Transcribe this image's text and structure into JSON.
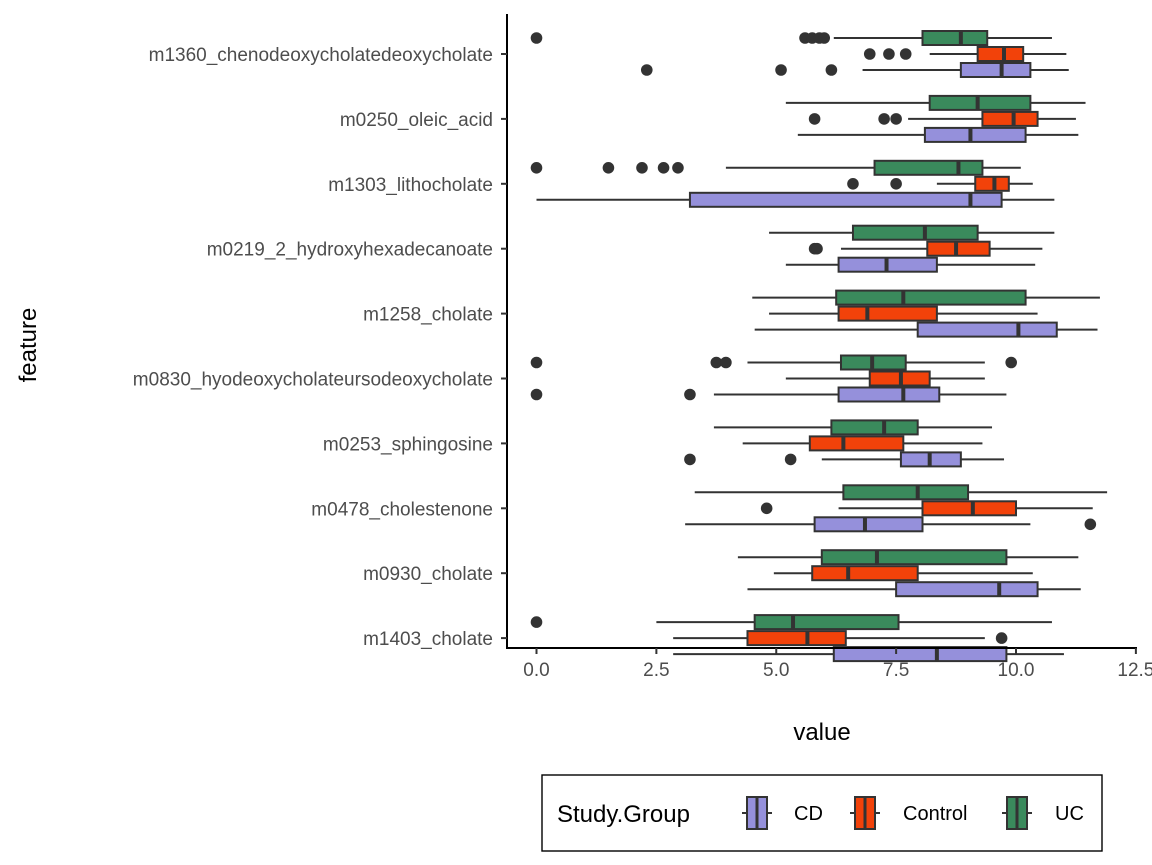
{
  "chart_data": {
    "type": "boxplot",
    "orientation": "horizontal",
    "xlabel": "value",
    "ylabel": "feature",
    "xlim": [
      -0.6,
      12.5
    ],
    "x_ticks": [
      0.0,
      2.5,
      5.0,
      7.5,
      10.0,
      12.5
    ],
    "x_tick_labels": [
      "0.0",
      "2.5",
      "5.0",
      "7.5",
      "10.0",
      "12.5"
    ],
    "grid": false,
    "legend": {
      "title": "Study.Group",
      "placement": "bottom",
      "entries": [
        "CD",
        "Control",
        "UC"
      ]
    },
    "colors": {
      "CD": "#9590db",
      "Control": "#f2420a",
      "UC": "#3a8a5c"
    },
    "categories": [
      "m1360_chenodeoxycholatedeoxycholate",
      "m0250_oleic_acid",
      "m1303_lithocholate",
      "m0219_2_hydroxyhexadecanoate",
      "m1258_cholate",
      "m0830_hyodeoxycholateursodeoxycholate",
      "m0253_sphingosine",
      "m0478_cholestenone",
      "m0930_cholate",
      "m1403_cholate"
    ],
    "series": [
      {
        "name": "CD",
        "boxes": [
          {
            "whislo": 6.8,
            "q1": 8.85,
            "med": 9.7,
            "q3": 10.3,
            "whishi": 11.1,
            "outliers": [
              2.3,
              5.1,
              6.15
            ]
          },
          {
            "whislo": 5.45,
            "q1": 8.1,
            "med": 9.05,
            "q3": 10.2,
            "whishi": 11.3,
            "outliers": []
          },
          {
            "whislo": 0.0,
            "q1": 3.2,
            "med": 9.05,
            "q3": 9.7,
            "whishi": 10.8,
            "outliers": []
          },
          {
            "whislo": 5.2,
            "q1": 6.3,
            "med": 7.3,
            "q3": 8.35,
            "whishi": 10.4,
            "outliers": []
          },
          {
            "whislo": 4.55,
            "q1": 7.95,
            "med": 10.05,
            "q3": 10.85,
            "whishi": 11.7,
            "outliers": []
          },
          {
            "whislo": 3.7,
            "q1": 6.3,
            "med": 7.65,
            "q3": 8.4,
            "whishi": 9.8,
            "outliers": [
              0.0,
              3.2
            ]
          },
          {
            "whislo": 5.95,
            "q1": 7.6,
            "med": 8.2,
            "q3": 8.85,
            "whishi": 9.75,
            "outliers": [
              3.2,
              5.3
            ]
          },
          {
            "whislo": 3.1,
            "q1": 5.8,
            "med": 6.85,
            "q3": 8.05,
            "whishi": 10.3,
            "outliers": [
              11.55
            ]
          },
          {
            "whislo": 4.4,
            "q1": 7.5,
            "med": 9.65,
            "q3": 10.45,
            "whishi": 11.35,
            "outliers": []
          },
          {
            "whislo": 2.85,
            "q1": 6.2,
            "med": 8.35,
            "q3": 9.8,
            "whishi": 11.0,
            "outliers": []
          }
        ]
      },
      {
        "name": "Control",
        "boxes": [
          {
            "whislo": 8.2,
            "q1": 9.2,
            "med": 9.75,
            "q3": 10.15,
            "whishi": 11.05,
            "outliers": [
              6.95,
              7.35,
              7.7
            ]
          },
          {
            "whislo": 7.75,
            "q1": 9.3,
            "med": 9.95,
            "q3": 10.45,
            "whishi": 11.25,
            "outliers": [
              5.8,
              7.25,
              7.5
            ]
          },
          {
            "whislo": 8.35,
            "q1": 9.15,
            "med": 9.55,
            "q3": 9.85,
            "whishi": 10.35,
            "outliers": [
              6.6,
              7.5
            ]
          },
          {
            "whislo": 6.35,
            "q1": 8.15,
            "med": 8.75,
            "q3": 9.45,
            "whishi": 10.55,
            "outliers": [
              5.8,
              5.85
            ]
          },
          {
            "whislo": 4.85,
            "q1": 6.3,
            "med": 6.9,
            "q3": 8.35,
            "whishi": 10.45,
            "outliers": []
          },
          {
            "whislo": 5.2,
            "q1": 6.95,
            "med": 7.6,
            "q3": 8.2,
            "whishi": 9.35,
            "outliers": []
          },
          {
            "whislo": 4.3,
            "q1": 5.7,
            "med": 6.4,
            "q3": 7.65,
            "whishi": 9.3,
            "outliers": []
          },
          {
            "whislo": 6.3,
            "q1": 8.05,
            "med": 9.1,
            "q3": 10.0,
            "whishi": 11.6,
            "outliers": [
              4.8
            ]
          },
          {
            "whislo": 4.95,
            "q1": 5.75,
            "med": 6.5,
            "q3": 7.95,
            "whishi": 10.35,
            "outliers": []
          },
          {
            "whislo": 2.85,
            "q1": 4.4,
            "med": 5.65,
            "q3": 6.45,
            "whishi": 9.35,
            "outliers": [
              9.7
            ]
          }
        ]
      },
      {
        "name": "UC",
        "boxes": [
          {
            "whislo": 6.2,
            "q1": 8.05,
            "med": 8.85,
            "q3": 9.4,
            "whishi": 10.75,
            "outliers": [
              0.0,
              5.6,
              5.75,
              5.9,
              6.0
            ]
          },
          {
            "whislo": 5.2,
            "q1": 8.2,
            "med": 9.2,
            "q3": 10.3,
            "whishi": 11.45,
            "outliers": []
          },
          {
            "whislo": 3.95,
            "q1": 7.05,
            "med": 8.8,
            "q3": 9.3,
            "whishi": 10.1,
            "outliers": [
              0.0,
              1.5,
              2.2,
              2.65,
              2.95
            ]
          },
          {
            "whislo": 4.85,
            "q1": 6.6,
            "med": 8.1,
            "q3": 9.2,
            "whishi": 10.8,
            "outliers": []
          },
          {
            "whislo": 4.5,
            "q1": 6.25,
            "med": 7.65,
            "q3": 10.2,
            "whishi": 11.75,
            "outliers": []
          },
          {
            "whislo": 4.4,
            "q1": 6.35,
            "med": 7.0,
            "q3": 7.7,
            "whishi": 9.35,
            "outliers": [
              0.0,
              3.75,
              3.95,
              9.9
            ]
          },
          {
            "whislo": 3.7,
            "q1": 6.15,
            "med": 7.25,
            "q3": 7.95,
            "whishi": 9.5,
            "outliers": []
          },
          {
            "whislo": 3.3,
            "q1": 6.4,
            "med": 7.95,
            "q3": 9.0,
            "whishi": 11.9,
            "outliers": []
          },
          {
            "whislo": 4.2,
            "q1": 5.95,
            "med": 7.1,
            "q3": 9.8,
            "whishi": 11.3,
            "outliers": []
          },
          {
            "whislo": 2.5,
            "q1": 4.55,
            "med": 5.35,
            "q3": 7.55,
            "whishi": 10.75,
            "outliers": [
              0.0
            ]
          }
        ]
      }
    ]
  }
}
